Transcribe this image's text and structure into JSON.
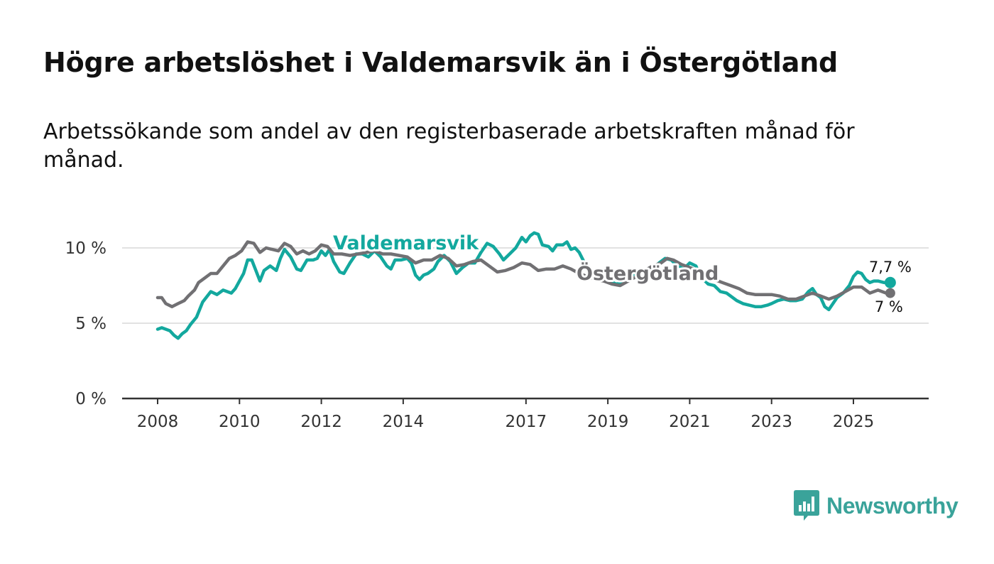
{
  "title": "Högre arbetslöshet i Valdemarsvik än i Östergötland",
  "subtitle": "Arbetssökande som andel av den registerbaserade arbetskraften månad för månad.",
  "brand": {
    "name": "Newsworthy",
    "icon": "bar-chart-speech-bubble-icon"
  },
  "colors": {
    "valdemarsvik": "#13a89e",
    "ostergotland": "#717073",
    "grid": "#d9d9d9",
    "axis": "#333333"
  },
  "chart_data": {
    "type": "line",
    "title": "Högre arbetslöshet i Valdemarsvik än i Östergötland",
    "xlabel": "",
    "ylabel": "",
    "xlim": [
      2008,
      2026.4
    ],
    "ylim": [
      0,
      12
    ],
    "y_ticks": [
      0,
      5,
      10
    ],
    "y_tick_labels": [
      "0 %",
      "5 %",
      "10 %"
    ],
    "x_ticks": [
      2008,
      2010,
      2012,
      2014,
      2017,
      2019,
      2021,
      2023,
      2025
    ],
    "x_tick_labels": [
      "2008",
      "2010",
      "2012",
      "2014",
      "2017",
      "2019",
      "2021",
      "2023",
      "2025"
    ],
    "grid": true,
    "series": [
      {
        "name": "Valdemarsvik",
        "label": "Valdemarsvik",
        "end_label": "7,7 %",
        "points": [
          [
            2008.0,
            4.6
          ],
          [
            2008.1,
            4.7
          ],
          [
            2008.3,
            4.5
          ],
          [
            2008.4,
            4.2
          ],
          [
            2008.5,
            4.0
          ],
          [
            2008.6,
            4.3
          ],
          [
            2008.7,
            4.5
          ],
          [
            2008.8,
            4.9
          ],
          [
            2008.95,
            5.4
          ],
          [
            2009.1,
            6.4
          ],
          [
            2009.3,
            7.1
          ],
          [
            2009.45,
            6.9
          ],
          [
            2009.6,
            7.2
          ],
          [
            2009.8,
            7.0
          ],
          [
            2009.9,
            7.3
          ],
          [
            2010.0,
            7.8
          ],
          [
            2010.1,
            8.3
          ],
          [
            2010.2,
            9.2
          ],
          [
            2010.3,
            9.2
          ],
          [
            2010.4,
            8.5
          ],
          [
            2010.5,
            7.8
          ],
          [
            2010.6,
            8.5
          ],
          [
            2010.75,
            8.8
          ],
          [
            2010.9,
            8.5
          ],
          [
            2011.0,
            9.3
          ],
          [
            2011.1,
            9.9
          ],
          [
            2011.25,
            9.4
          ],
          [
            2011.4,
            8.6
          ],
          [
            2011.5,
            8.5
          ],
          [
            2011.65,
            9.2
          ],
          [
            2011.8,
            9.2
          ],
          [
            2011.9,
            9.3
          ],
          [
            2012.0,
            9.8
          ],
          [
            2012.1,
            9.5
          ],
          [
            2012.2,
            9.9
          ],
          [
            2012.3,
            9.1
          ],
          [
            2012.45,
            8.4
          ],
          [
            2012.55,
            8.3
          ],
          [
            2012.7,
            9.0
          ],
          [
            2012.85,
            9.6
          ],
          [
            2013.0,
            9.6
          ],
          [
            2013.15,
            9.4
          ],
          [
            2013.3,
            9.8
          ],
          [
            2013.45,
            9.4
          ],
          [
            2013.6,
            8.8
          ],
          [
            2013.7,
            8.6
          ],
          [
            2013.8,
            9.2
          ],
          [
            2013.95,
            9.2
          ],
          [
            2014.1,
            9.3
          ],
          [
            2014.2,
            9.0
          ],
          [
            2014.3,
            8.2
          ],
          [
            2014.4,
            7.9
          ],
          [
            2014.5,
            8.2
          ],
          [
            2014.6,
            8.3
          ],
          [
            2014.75,
            8.6
          ],
          [
            2014.85,
            9.1
          ],
          [
            2015.0,
            9.5
          ],
          [
            2015.15,
            9.1
          ],
          [
            2015.3,
            8.3
          ],
          [
            2015.45,
            8.7
          ],
          [
            2015.6,
            9.0
          ],
          [
            2015.75,
            9.0
          ],
          [
            2015.9,
            9.7
          ],
          [
            2016.05,
            10.3
          ],
          [
            2016.2,
            10.1
          ],
          [
            2016.35,
            9.6
          ],
          [
            2016.45,
            9.2
          ],
          [
            2016.6,
            9.6
          ],
          [
            2016.75,
            10.0
          ],
          [
            2016.9,
            10.7
          ],
          [
            2017.0,
            10.4
          ],
          [
            2017.1,
            10.8
          ],
          [
            2017.2,
            11.0
          ],
          [
            2017.3,
            10.9
          ],
          [
            2017.4,
            10.2
          ],
          [
            2017.55,
            10.1
          ],
          [
            2017.65,
            9.8
          ],
          [
            2017.75,
            10.2
          ],
          [
            2017.9,
            10.2
          ],
          [
            2018.0,
            10.4
          ],
          [
            2018.1,
            9.9
          ],
          [
            2018.2,
            10.0
          ],
          [
            2018.3,
            9.7
          ],
          [
            2018.45,
            8.9
          ],
          [
            2018.6,
            8.3
          ],
          [
            2018.75,
            8.2
          ],
          [
            2018.9,
            8.0
          ],
          [
            2019.05,
            7.8
          ],
          [
            2019.2,
            7.6
          ],
          [
            2019.35,
            7.7
          ],
          [
            2019.5,
            8.0
          ],
          [
            2019.65,
            8.3
          ],
          [
            2019.8,
            8.1
          ],
          [
            2019.95,
            8.0
          ],
          [
            2020.1,
            8.6
          ],
          [
            2020.25,
            9.0
          ],
          [
            2020.4,
            9.3
          ],
          [
            2020.55,
            9.2
          ],
          [
            2020.7,
            8.8
          ],
          [
            2020.85,
            8.6
          ],
          [
            2021.0,
            9.0
          ],
          [
            2021.15,
            8.8
          ],
          [
            2021.3,
            8.0
          ],
          [
            2021.45,
            7.6
          ],
          [
            2021.6,
            7.5
          ],
          [
            2021.75,
            7.1
          ],
          [
            2021.9,
            7.0
          ],
          [
            2022.0,
            6.8
          ],
          [
            2022.15,
            6.5
          ],
          [
            2022.3,
            6.3
          ],
          [
            2022.45,
            6.2
          ],
          [
            2022.6,
            6.1
          ],
          [
            2022.75,
            6.1
          ],
          [
            2022.9,
            6.2
          ],
          [
            2023.0,
            6.3
          ],
          [
            2023.15,
            6.5
          ],
          [
            2023.3,
            6.6
          ],
          [
            2023.45,
            6.5
          ],
          [
            2023.6,
            6.5
          ],
          [
            2023.75,
            6.6
          ],
          [
            2023.9,
            7.1
          ],
          [
            2024.0,
            7.3
          ],
          [
            2024.1,
            6.9
          ],
          [
            2024.2,
            6.7
          ],
          [
            2024.3,
            6.1
          ],
          [
            2024.4,
            5.9
          ],
          [
            2024.5,
            6.3
          ],
          [
            2024.6,
            6.7
          ],
          [
            2024.75,
            7.0
          ],
          [
            2024.9,
            7.5
          ],
          [
            2025.0,
            8.1
          ],
          [
            2025.1,
            8.4
          ],
          [
            2025.2,
            8.3
          ],
          [
            2025.3,
            7.9
          ],
          [
            2025.4,
            7.7
          ],
          [
            2025.5,
            7.8
          ],
          [
            2025.6,
            7.8
          ],
          [
            2025.75,
            7.7
          ],
          [
            2025.9,
            7.7
          ]
        ]
      },
      {
        "name": "Östergötland",
        "label": "Östergötland",
        "end_label": "7 %",
        "points": [
          [
            2008.0,
            6.7
          ],
          [
            2008.1,
            6.7
          ],
          [
            2008.2,
            6.3
          ],
          [
            2008.35,
            6.1
          ],
          [
            2008.5,
            6.3
          ],
          [
            2008.65,
            6.5
          ],
          [
            2008.75,
            6.8
          ],
          [
            2008.9,
            7.2
          ],
          [
            2009.0,
            7.7
          ],
          [
            2009.15,
            8.0
          ],
          [
            2009.3,
            8.3
          ],
          [
            2009.45,
            8.3
          ],
          [
            2009.6,
            8.8
          ],
          [
            2009.75,
            9.3
          ],
          [
            2009.9,
            9.5
          ],
          [
            2010.05,
            9.8
          ],
          [
            2010.2,
            10.4
          ],
          [
            2010.35,
            10.3
          ],
          [
            2010.5,
            9.7
          ],
          [
            2010.65,
            10.0
          ],
          [
            2010.8,
            9.9
          ],
          [
            2010.95,
            9.8
          ],
          [
            2011.1,
            10.3
          ],
          [
            2011.25,
            10.1
          ],
          [
            2011.4,
            9.6
          ],
          [
            2011.55,
            9.8
          ],
          [
            2011.7,
            9.6
          ],
          [
            2011.85,
            9.8
          ],
          [
            2012.0,
            10.2
          ],
          [
            2012.15,
            10.1
          ],
          [
            2012.3,
            9.6
          ],
          [
            2012.5,
            9.6
          ],
          [
            2012.7,
            9.5
          ],
          [
            2012.9,
            9.6
          ],
          [
            2013.1,
            9.7
          ],
          [
            2013.3,
            9.8
          ],
          [
            2013.5,
            9.6
          ],
          [
            2013.7,
            9.6
          ],
          [
            2013.9,
            9.5
          ],
          [
            2014.1,
            9.4
          ],
          [
            2014.3,
            9.0
          ],
          [
            2014.5,
            9.2
          ],
          [
            2014.7,
            9.2
          ],
          [
            2014.9,
            9.5
          ],
          [
            2015.1,
            9.3
          ],
          [
            2015.3,
            8.8
          ],
          [
            2015.5,
            8.9
          ],
          [
            2015.7,
            9.1
          ],
          [
            2015.9,
            9.2
          ],
          [
            2016.1,
            8.8
          ],
          [
            2016.3,
            8.4
          ],
          [
            2016.5,
            8.5
          ],
          [
            2016.7,
            8.7
          ],
          [
            2016.9,
            9.0
          ],
          [
            2017.1,
            8.9
          ],
          [
            2017.3,
            8.5
          ],
          [
            2017.5,
            8.6
          ],
          [
            2017.7,
            8.6
          ],
          [
            2017.9,
            8.8
          ],
          [
            2018.1,
            8.6
          ],
          [
            2018.3,
            8.3
          ],
          [
            2018.5,
            8.1
          ],
          [
            2018.7,
            7.9
          ],
          [
            2018.9,
            7.8
          ],
          [
            2019.1,
            7.6
          ],
          [
            2019.3,
            7.5
          ],
          [
            2019.5,
            7.8
          ],
          [
            2019.7,
            8.1
          ],
          [
            2019.9,
            8.5
          ],
          [
            2020.1,
            8.8
          ],
          [
            2020.3,
            9.0
          ],
          [
            2020.45,
            9.3
          ],
          [
            2020.6,
            9.2
          ],
          [
            2020.8,
            8.9
          ],
          [
            2021.0,
            8.7
          ],
          [
            2021.2,
            8.5
          ],
          [
            2021.4,
            8.2
          ],
          [
            2021.6,
            7.9
          ],
          [
            2021.8,
            7.7
          ],
          [
            2022.0,
            7.5
          ],
          [
            2022.2,
            7.3
          ],
          [
            2022.4,
            7.0
          ],
          [
            2022.6,
            6.9
          ],
          [
            2022.8,
            6.9
          ],
          [
            2023.0,
            6.9
          ],
          [
            2023.2,
            6.8
          ],
          [
            2023.4,
            6.6
          ],
          [
            2023.6,
            6.6
          ],
          [
            2023.8,
            6.8
          ],
          [
            2024.0,
            7.0
          ],
          [
            2024.2,
            6.8
          ],
          [
            2024.4,
            6.6
          ],
          [
            2024.6,
            6.8
          ],
          [
            2024.8,
            7.1
          ],
          [
            2025.0,
            7.4
          ],
          [
            2025.2,
            7.4
          ],
          [
            2025.4,
            7.0
          ],
          [
            2025.6,
            7.2
          ],
          [
            2025.8,
            7.0
          ],
          [
            2025.9,
            7.0
          ]
        ]
      }
    ]
  }
}
